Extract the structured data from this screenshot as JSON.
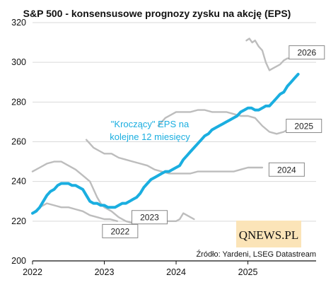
{
  "chart_data": {
    "type": "line",
    "title": "S&P 500 - konsensusowe prognozy zysku na akcję (EPS)",
    "source": "Źródło: Yardeni, LSEG Datastream",
    "logo": "QNEWS.PL",
    "callout_lines": [
      "\"Kroczący\" EPS na",
      "kolejne 12 miesięcy"
    ],
    "ylim": [
      200,
      320
    ],
    "yticks": [
      200,
      220,
      240,
      260,
      280,
      300,
      320
    ],
    "xlim": [
      2022.0,
      2025.95
    ],
    "xticks": [
      2022,
      2023,
      2024,
      2025
    ],
    "xtick_labels": [
      "2022",
      "2023",
      "2024",
      "2025"
    ],
    "colors": {
      "forward": "#1aaee0",
      "annual": "#bdbdbd",
      "grid": "#d9d9d9",
      "box_border": "#888888",
      "logo_bg": "#fbe4b8"
    },
    "series": [
      {
        "name": "\"Kroczący\" EPS na kolejne 12 miesięcy",
        "role": "forward",
        "x": [
          2022.0,
          2022.05,
          2022.1,
          2022.15,
          2022.2,
          2022.25,
          2022.3,
          2022.35,
          2022.4,
          2022.45,
          2022.5,
          2022.55,
          2022.6,
          2022.65,
          2022.7,
          2022.75,
          2022.8,
          2022.85,
          2022.9,
          2022.95,
          2023.0,
          2023.05,
          2023.1,
          2023.15,
          2023.2,
          2023.25,
          2023.3,
          2023.35,
          2023.4,
          2023.45,
          2023.5,
          2023.55,
          2023.6,
          2023.65,
          2023.7,
          2023.75,
          2023.8,
          2023.85,
          2023.9,
          2023.95,
          2024.0,
          2024.05,
          2024.1,
          2024.15,
          2024.2,
          2024.25,
          2024.3,
          2024.35,
          2024.4,
          2024.45,
          2024.5,
          2024.55,
          2024.6,
          2024.65,
          2024.7,
          2024.75,
          2024.8,
          2024.85,
          2024.9,
          2024.95,
          2025.0,
          2025.05,
          2025.1,
          2025.15,
          2025.2,
          2025.25,
          2025.3,
          2025.35,
          2025.4,
          2025.45,
          2025.5,
          2025.55,
          2025.6,
          2025.65,
          2025.7
        ],
        "values": [
          224,
          225,
          227,
          230,
          233,
          235,
          236,
          238,
          239,
          239,
          239,
          238,
          238,
          237,
          236,
          233,
          230,
          229,
          229,
          228,
          228,
          227,
          227,
          227,
          228,
          229,
          229,
          230,
          231,
          232,
          234,
          237,
          239,
          241,
          242,
          243,
          244,
          245,
          245,
          246,
          247,
          248,
          251,
          253,
          255,
          257,
          259,
          261,
          263,
          264,
          266,
          267,
          268,
          269,
          270,
          271,
          272,
          273,
          275,
          276,
          277,
          277,
          276,
          276,
          277,
          278,
          278,
          280,
          282,
          284,
          285,
          288,
          290,
          292,
          294
        ]
      },
      {
        "name": "2022",
        "role": "annual",
        "label_pos": [
          2023.22,
          215
        ],
        "x": [
          2022.0,
          2022.1,
          2022.2,
          2022.3,
          2022.4,
          2022.5,
          2022.6,
          2022.7,
          2022.8,
          2022.9,
          2023.0,
          2023.08,
          2023.18
        ],
        "values": [
          224,
          227,
          229,
          228,
          227,
          227,
          226,
          225,
          223,
          222,
          221,
          221,
          220
        ]
      },
      {
        "name": "2023",
        "role": "annual",
        "label_pos": [
          2023.63,
          222
        ],
        "x": [
          2022.0,
          2022.1,
          2022.2,
          2022.3,
          2022.4,
          2022.5,
          2022.6,
          2022.7,
          2022.8,
          2022.85,
          2022.9,
          2022.95,
          2023.0,
          2023.1,
          2023.2,
          2023.3,
          2023.4,
          2023.5,
          2023.6,
          2023.7,
          2023.8,
          2023.9,
          2024.0,
          2024.05,
          2024.1,
          2024.2,
          2024.25
        ],
        "values": [
          245,
          247,
          249,
          250,
          250,
          248,
          246,
          243,
          240,
          236,
          232,
          229,
          227,
          225,
          222,
          220,
          219,
          219,
          219,
          219,
          220,
          220,
          220,
          221,
          224,
          222,
          221
        ]
      },
      {
        "name": "2024",
        "role": "annual",
        "label_pos": [
          2025.54,
          246
        ],
        "x": [
          2022.75,
          2022.85,
          2022.95,
          2023.0,
          2023.1,
          2023.2,
          2023.3,
          2023.4,
          2023.5,
          2023.6,
          2023.7,
          2023.8,
          2023.9,
          2024.0,
          2024.1,
          2024.2,
          2024.3,
          2024.4,
          2024.5,
          2024.6,
          2024.7,
          2024.8,
          2024.9,
          2025.0,
          2025.1,
          2025.2
        ],
        "values": [
          261,
          257,
          255,
          254,
          254,
          252,
          251,
          250,
          249,
          248,
          246,
          245,
          244,
          244,
          244,
          244,
          245,
          245,
          245,
          245,
          245,
          245,
          246,
          247,
          247,
          247
        ]
      },
      {
        "name": "2025",
        "role": "annual",
        "label_pos": [
          2025.78,
          268
        ],
        "x": [
          2023.75,
          2023.85,
          2023.95,
          2024.0,
          2024.1,
          2024.2,
          2024.3,
          2024.4,
          2024.5,
          2024.6,
          2024.7,
          2024.8,
          2024.9,
          2025.0,
          2025.1,
          2025.2,
          2025.3,
          2025.4,
          2025.5,
          2025.6,
          2025.7
        ],
        "values": [
          268,
          272,
          274,
          275,
          275,
          275,
          276,
          276,
          275,
          275,
          275,
          274,
          273,
          273,
          272,
          268,
          265,
          264,
          265,
          267,
          268
        ]
      },
      {
        "name": "2026",
        "role": "annual",
        "label_pos": [
          2025.82,
          305
        ],
        "x": [
          2024.98,
          2025.02,
          2025.06,
          2025.1,
          2025.15,
          2025.2,
          2025.25,
          2025.3,
          2025.35,
          2025.4,
          2025.45,
          2025.5,
          2025.55,
          2025.6,
          2025.65,
          2025.7
        ],
        "values": [
          311,
          312,
          310,
          311,
          308,
          306,
          300,
          296,
          297,
          298,
          299,
          301,
          302,
          302,
          304,
          305
        ]
      }
    ]
  }
}
